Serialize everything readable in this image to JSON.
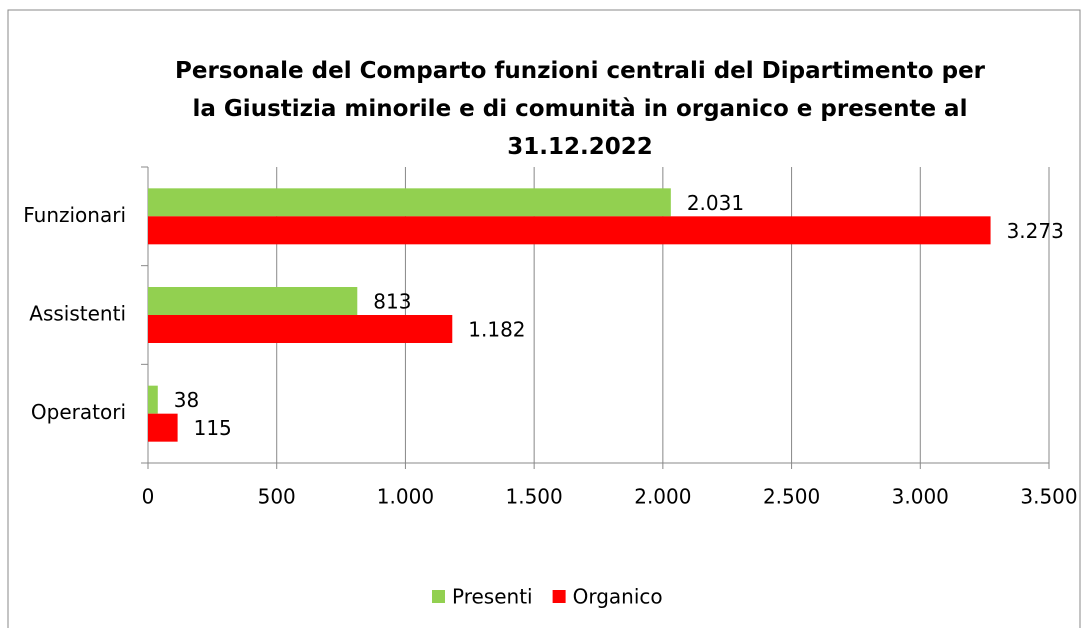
{
  "chart_data": {
    "type": "hbar",
    "title": "Personale del Comparto funzioni centrali del Dipartimento per la Giustizia minorile e di comunità in organico e presente al 31.12.2022",
    "categories": [
      "Funzionari",
      "Assistenti",
      "Operatori"
    ],
    "series": [
      {
        "name": "Presenti",
        "color": "#92d050",
        "values": [
          2031,
          813,
          38
        ],
        "value_labels": [
          "2.031",
          "813",
          "38"
        ]
      },
      {
        "name": "Organico",
        "color": "#ff0000",
        "values": [
          3273,
          1182,
          115
        ],
        "value_labels": [
          "3.273",
          "1.182",
          "115"
        ]
      }
    ],
    "xlim": [
      0,
      3500
    ],
    "xticks": [
      0,
      500,
      {
        "value": 1000,
        "label": "1.000"
      },
      {
        "value": 1500,
        "label": "1.500"
      },
      {
        "value": 2000,
        "label": "2.000"
      },
      {
        "value": 2500,
        "label": "2.500"
      },
      {
        "value": 3000,
        "label": "3.000"
      },
      {
        "value": 3500,
        "label": "3.500"
      }
    ],
    "grid": true,
    "legend": "bottom"
  }
}
